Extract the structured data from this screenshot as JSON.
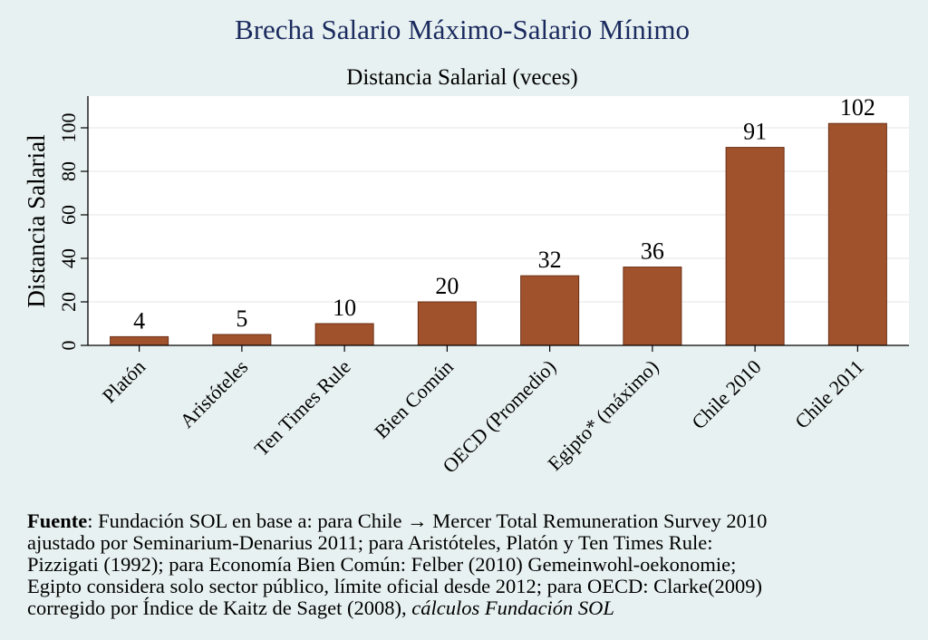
{
  "chart_data": {
    "type": "bar",
    "title": "Brecha Salario Máximo-Salario Mínimo",
    "subtitle": "Distancia Salarial (veces)",
    "xlabel": "",
    "ylabel": "Distancia Salarial",
    "categories": [
      "Platón",
      "Aristóteles",
      "Ten Times Rule",
      "Bien Común",
      "OECD (Promedio)",
      "Egipto* (máximo)",
      "Chile 2010",
      "Chile 2011"
    ],
    "values": [
      4,
      5,
      10,
      20,
      32,
      36,
      91,
      102
    ],
    "data_labels": [
      "4",
      "5",
      "10",
      "20",
      "32",
      "36",
      "91",
      "102"
    ],
    "ylim": [
      0,
      113
    ],
    "yticks": [
      0,
      20,
      40,
      60,
      80,
      100
    ],
    "grid": true,
    "legend": "none",
    "colors": {
      "bar": "#a0522d",
      "bar_edge": "#6b2f14",
      "title": "#1a2a5e",
      "plot_bg": "#ffffff",
      "page_bg": "#e8f1f1",
      "grid": "#e6e6e6"
    }
  },
  "source": {
    "label": "Fuente",
    "line1": ": Fundación SOL en base a: para Chile → Mercer Total Remuneration Survey 2010",
    "line2": "ajustado por Seminarium-Denarius 2011; para Aristóteles, Platón y Ten Times Rule:",
    "line3": "Pizzigati (1992); para Economía Bien Común: Felber (2010) Gemeinwohl-oekonomie;",
    "line4": "Egipto considera solo sector público, límite oficial desde 2012; para OECD: Clarke(2009)",
    "line5_plain": "corregido por Índice de Kaitz de Saget (2008), ",
    "line5_italic": "cálculos Fundación SOL"
  }
}
